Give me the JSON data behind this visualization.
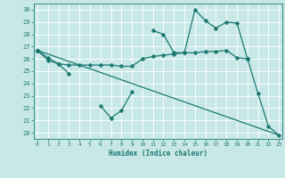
{
  "xlabel": "Humidex (Indice chaleur)",
  "x": [
    0,
    1,
    2,
    3,
    4,
    5,
    6,
    7,
    8,
    9,
    10,
    11,
    12,
    13,
    14,
    15,
    16,
    17,
    18,
    19,
    20,
    21,
    22,
    23
  ],
  "line1": [
    26.7,
    26.1,
    25.6,
    24.8,
    null,
    null,
    22.2,
    21.2,
    21.8,
    23.3,
    null,
    null,
    null,
    null,
    null,
    null,
    null,
    null,
    null,
    null,
    null,
    null,
    null,
    null
  ],
  "line2": [
    26.7,
    25.9,
    25.6,
    25.5,
    25.5,
    25.5,
    25.5,
    25.5,
    25.4,
    25.4,
    26.0,
    26.2,
    26.3,
    26.4,
    26.5,
    26.5,
    26.6,
    26.6,
    26.7,
    26.1,
    26.0,
    null,
    null,
    null
  ],
  "line3": [
    26.7,
    null,
    null,
    null,
    null,
    null,
    null,
    null,
    null,
    null,
    null,
    null,
    null,
    null,
    null,
    null,
    null,
    null,
    null,
    null,
    26.0,
    23.2,
    20.5,
    19.8
  ],
  "line4": [
    26.7,
    null,
    null,
    null,
    null,
    null,
    null,
    null,
    null,
    null,
    null,
    28.3,
    28.0,
    26.5,
    26.5,
    30.0,
    29.1,
    28.5,
    29.0,
    28.9,
    26.0,
    null,
    null,
    null
  ],
  "line5_x": [
    0,
    23
  ],
  "line5_y": [
    26.7,
    19.8
  ],
  "bg_color": "#c8e8e8",
  "grid_color": "#b0d4d4",
  "line_color": "#1a7870",
  "ylim": [
    19.5,
    30.5
  ],
  "yticks": [
    20,
    21,
    22,
    23,
    24,
    25,
    26,
    27,
    28,
    29,
    30
  ],
  "xticks": [
    0,
    1,
    2,
    3,
    4,
    5,
    6,
    7,
    8,
    9,
    10,
    11,
    12,
    13,
    14,
    15,
    16,
    17,
    18,
    19,
    20,
    21,
    22,
    23
  ]
}
